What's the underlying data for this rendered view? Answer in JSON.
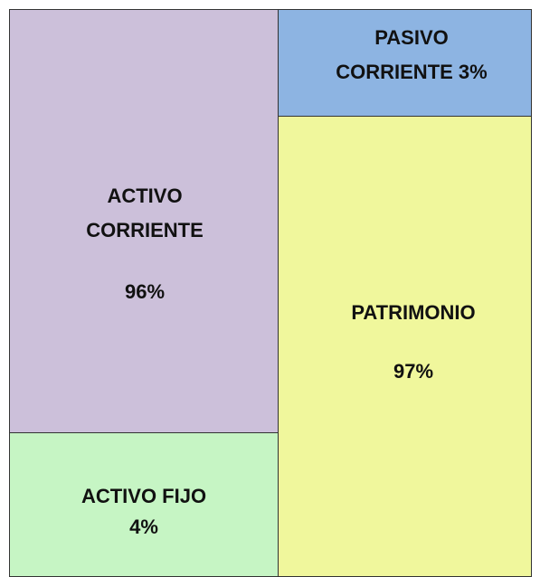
{
  "blocks": [
    {
      "label": "ACTIVO CORRIENTE",
      "value": "96%"
    },
    {
      "label": "ACTIVO FIJO",
      "value": "4%"
    },
    {
      "label": "PASIVO CORRIENTE 3%"
    },
    {
      "label": "PATRIMONIO",
      "value": "97%"
    }
  ]
}
